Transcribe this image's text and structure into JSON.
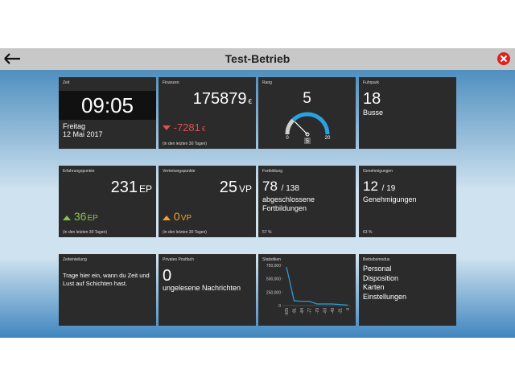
{
  "header": {
    "title": "Test-Betrieb"
  },
  "zeit": {
    "label": "Zeit",
    "time": "09:05",
    "weekday": "Freitag",
    "date": "12 Mai 2017"
  },
  "finanzen": {
    "label": "Finanzen",
    "value": 175879,
    "unit": "€",
    "change": -7281,
    "change_unit": "€",
    "period": "(in den letzten 30 Tagen)"
  },
  "rang": {
    "label": "Rang",
    "value": 5,
    "min": 0,
    "max": 20
  },
  "fuhrpark": {
    "label": "Fuhrpark",
    "value": 18,
    "unit": "Busse"
  },
  "erfahrungspunkte": {
    "label": "Erfahrungspunkte",
    "value": 231,
    "unit": "EP",
    "change": 36,
    "change_unit": "EP",
    "period": "(in den letzten 30 Tagen)"
  },
  "vertretungspunkte": {
    "label": "Vertretungspunkte",
    "value": 25,
    "unit": "VP",
    "change": 0,
    "change_unit": "VP",
    "period": "(in den letzten 30 Tagen)"
  },
  "fortbildung": {
    "label": "Fortbildung",
    "value": 78,
    "total": "/ 138",
    "text": "abgeschlossene Fortbildungen",
    "percent": "57 %"
  },
  "genehmigungen": {
    "label": "Genehmigungen",
    "value": 12,
    "total": "/ 19",
    "text": "Genehmigungen",
    "percent": "63 %"
  },
  "zeiteinteilung": {
    "label": "Zeiteinteilung",
    "text": "Trage hier ein, wann du Zeit und Lust auf Schichten hast."
  },
  "postfach": {
    "label": "Privates Postfach",
    "value": 0,
    "text": "ungelesene Nachrichten"
  },
  "statistiken": {
    "label": "Statistiken",
    "type": "line",
    "color": "#29a3e0",
    "x": [
      "-105",
      "-91",
      "-84",
      "-77",
      "-70",
      "-63",
      "-49",
      "-21",
      "0"
    ],
    "values": [
      720000,
      90000,
      80000,
      80000,
      30000,
      30000,
      30000,
      20000,
      10000
    ],
    "ylim": [
      0,
      750000
    ],
    "yticks": [
      0,
      {
        "value": 250000,
        "label": "250,000"
      },
      {
        "value": 500000,
        "label": "500,000"
      },
      {
        "value": 750000,
        "label": "750,000"
      }
    ]
  },
  "betriebsmodus": {
    "label": "Betriebsmodus",
    "items": [
      "Personal",
      "Disposition",
      "Karten",
      "Einstellungen"
    ]
  }
}
